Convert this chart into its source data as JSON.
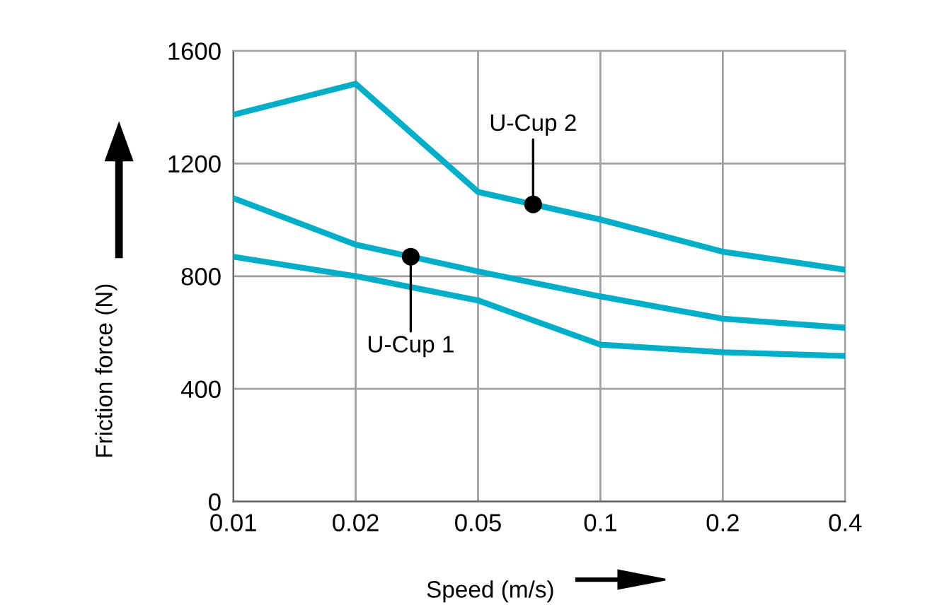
{
  "chart_data": {
    "type": "line",
    "xlabel": "Speed (m/s)",
    "ylabel": "Friction force (N)",
    "categories": [
      "0.01",
      "0.02",
      "0.05",
      "0.1",
      "0.2",
      "0.4"
    ],
    "ylim": [
      0,
      1600
    ],
    "yticks": [
      0,
      400,
      800,
      1200,
      1600
    ],
    "grid": true,
    "marker": "none",
    "line_style": "solid",
    "series": [
      {
        "name": "U-Cup 2",
        "color": "#00aec7",
        "values": [
          1373,
          1483,
          1099,
          1001,
          887,
          823
        ]
      },
      {
        "name": "U-Cup 1",
        "color": "#00aec7",
        "values": [
          1077,
          912,
          817,
          728,
          649,
          617
        ]
      },
      {
        "color": "#00aec7",
        "values": [
          869,
          800,
          714,
          557,
          530,
          517
        ]
      }
    ]
  }
}
